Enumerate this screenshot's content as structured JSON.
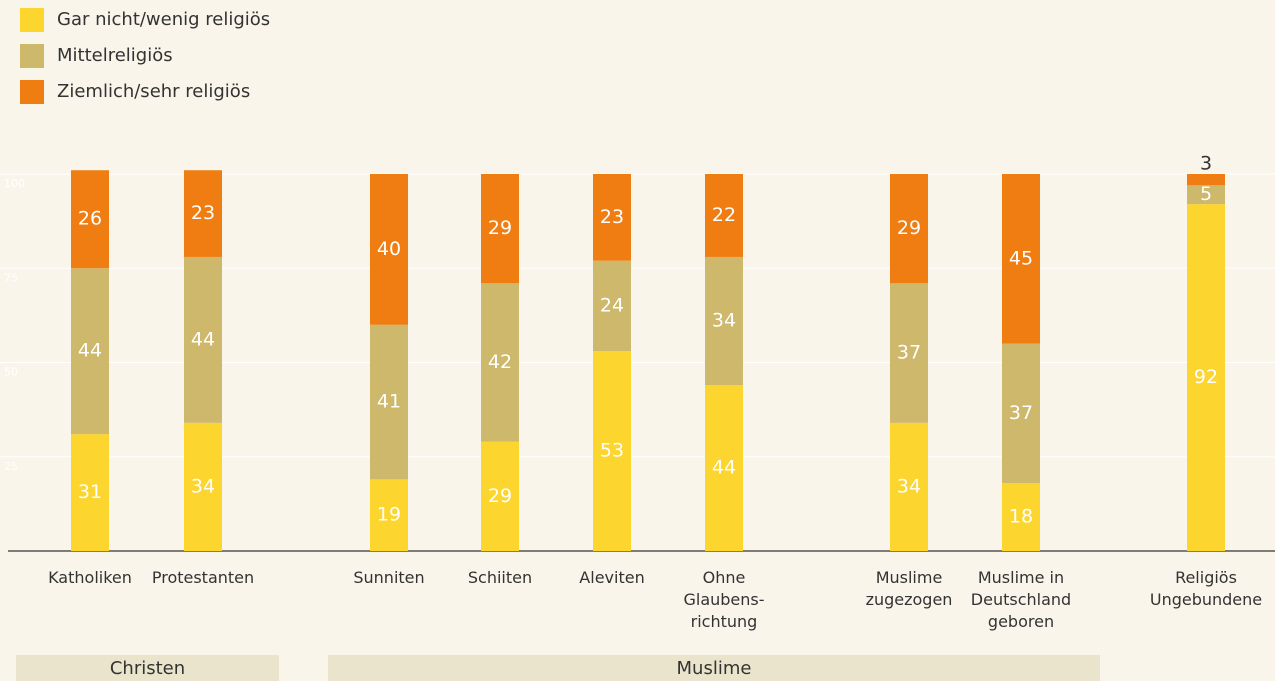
{
  "chart_data": {
    "type": "stacked_bar",
    "categories": [
      "Katholiken",
      "Protestanten",
      "Sunniten",
      "Schiiten",
      "Aleviten",
      "Ohne\nGlaubens-\nrichtung",
      "Muslime\nzugezogen",
      "Muslime in\nDeutschland\ngeboren",
      "Religiös\nUngebundene"
    ],
    "series": [
      {
        "name": "Gar nicht/wenig religiös",
        "color": "#fdd52f",
        "values": [
          31,
          34,
          19,
          29,
          53,
          44,
          34,
          18,
          92
        ]
      },
      {
        "name": "Mittelreligiös",
        "color": "#cdb86c",
        "values": [
          44,
          44,
          41,
          42,
          24,
          34,
          37,
          37,
          5
        ]
      },
      {
        "name": "Ziemlich/sehr religiös",
        "color": "#ef7d12",
        "values": [
          26,
          23,
          40,
          29,
          23,
          22,
          29,
          45,
          3
        ]
      }
    ],
    "ylim": [
      0,
      100
    ],
    "yticks": [
      25,
      50,
      75,
      100
    ],
    "grid": true,
    "legend": "top-left",
    "groups": [
      {
        "name": "Christen"
      },
      {
        "name": "Muslime"
      }
    ]
  }
}
